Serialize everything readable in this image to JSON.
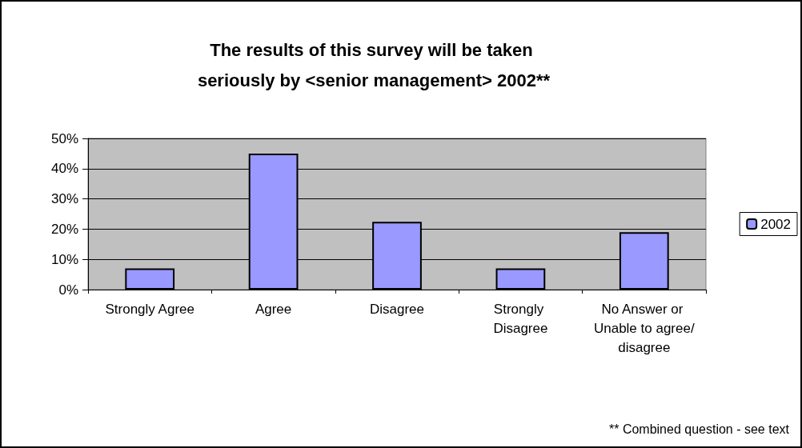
{
  "chart_data": {
    "type": "bar",
    "title": "The results of this survey will be taken seriously by <senior management> 2002**",
    "categories": [
      "Strongly Agree",
      "Agree",
      "Disagree",
      "Strongly Disagree",
      "No Answer or Unable to agree/disagree"
    ],
    "series": [
      {
        "name": "2002",
        "color": "#9999ff",
        "values": [
          7,
          45,
          22.4,
          7,
          19
        ]
      }
    ],
    "ylim": [
      0,
      50
    ],
    "yticks": [
      {
        "value": 0,
        "label": "0%"
      },
      {
        "value": 10,
        "label": "10%"
      },
      {
        "value": 20,
        "label": "20%"
      },
      {
        "value": 30,
        "label": "30%"
      },
      {
        "value": 40,
        "label": "40%"
      },
      {
        "value": 50,
        "label": "50%"
      }
    ],
    "grid": "y",
    "legend": "right",
    "annotations": [
      "** Combined question - see text"
    ]
  }
}
